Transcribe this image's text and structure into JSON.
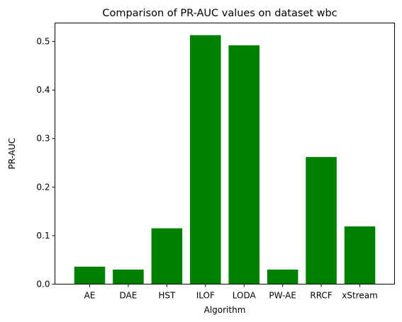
{
  "chart_data": {
    "type": "bar",
    "title": "Comparison of PR-AUC values on dataset wbc",
    "xlabel": "Algorithm",
    "ylabel": "PR-AUC",
    "categories": [
      "AE",
      "DAE",
      "HST",
      "ILOF",
      "LODA",
      "PW-AE",
      "RRCF",
      "xStream"
    ],
    "values": [
      0.036,
      0.03,
      0.115,
      0.513,
      0.492,
      0.03,
      0.262,
      0.119
    ],
    "ylim": [
      0,
      0.538
    ],
    "yticks": [
      "0.0",
      "0.1",
      "0.2",
      "0.3",
      "0.4",
      "0.5"
    ],
    "bar_color": "#008000",
    "grid": false,
    "legend": "none"
  }
}
